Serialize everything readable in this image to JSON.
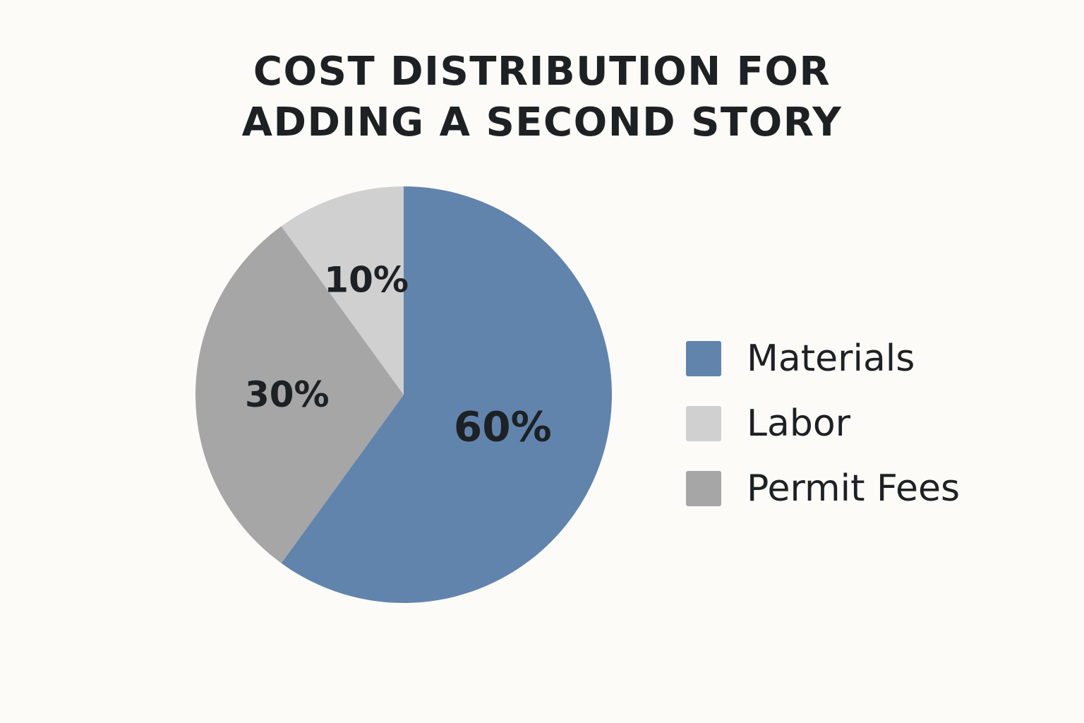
{
  "chart_data": {
    "type": "pie",
    "title_lines": [
      "COST DISTRIBUTION FOR",
      "ADDING A SECOND STORY"
    ],
    "slices": [
      {
        "name": "Materials",
        "value": 60,
        "label": "60%",
        "color": "#6184ad"
      },
      {
        "name": "Permit Fees",
        "value": 30,
        "label": "30%",
        "color": "#a6a6a6"
      },
      {
        "name": "Labor",
        "value": 10,
        "label": "10%",
        "color": "#d0d0d0"
      }
    ],
    "legend": [
      {
        "name": "Materials",
        "color": "#6184ad"
      },
      {
        "name": "Labor",
        "color": "#d0d0d0"
      },
      {
        "name": "Permit Fees",
        "color": "#a6a6a6"
      }
    ],
    "legend_position": "right"
  }
}
